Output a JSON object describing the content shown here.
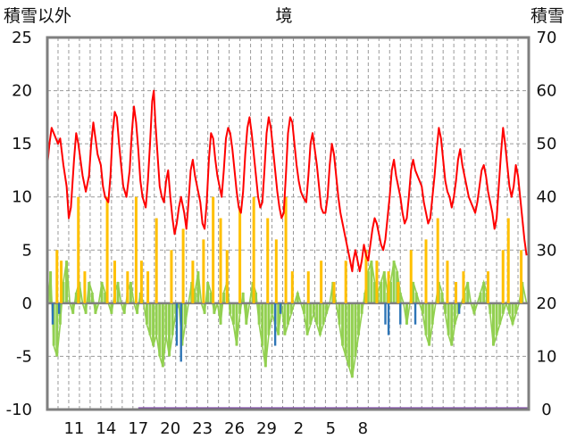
{
  "chart_data": {
    "type": "bar+line",
    "title": "境",
    "left_axis_label": "積雪以外",
    "right_axis_label": "積雪",
    "left_ylim": [
      -10,
      25
    ],
    "left_ticks": [
      "25",
      "20",
      "15",
      "10",
      "5",
      "0",
      "-5",
      "-10"
    ],
    "right_ylim": [
      0,
      70
    ],
    "right_ticks": [
      "70",
      "60",
      "50",
      "40",
      "30",
      "20",
      "10",
      "0"
    ],
    "x_range_days": 45,
    "x_ticks": [
      {
        "label": "11",
        "day": 2.5
      },
      {
        "label": "14",
        "day": 5.5
      },
      {
        "label": "17",
        "day": 8.5
      },
      {
        "label": "20",
        "day": 11.5
      },
      {
        "label": "23",
        "day": 14.5
      },
      {
        "label": "26",
        "day": 17.5
      },
      {
        "label": "29",
        "day": 20.5
      },
      {
        "label": "2",
        "day": 23.5
      },
      {
        "label": "5",
        "day": 26.5
      },
      {
        "label": "8",
        "day": 29.5
      }
    ],
    "grid": true,
    "snow_depth_right_axis": [
      [
        0.0,
        46
      ],
      [
        0.2,
        50
      ],
      [
        0.4,
        53
      ],
      [
        0.6,
        52
      ],
      [
        0.8,
        51
      ],
      [
        1.0,
        50
      ],
      [
        1.2,
        51
      ],
      [
        1.5,
        46
      ],
      [
        1.8,
        42
      ],
      [
        2.0,
        36
      ],
      [
        2.2,
        38
      ],
      [
        2.5,
        47
      ],
      [
        2.7,
        52
      ],
      [
        2.9,
        50
      ],
      [
        3.1,
        47
      ],
      [
        3.3,
        44
      ],
      [
        3.6,
        41
      ],
      [
        3.9,
        44
      ],
      [
        4.1,
        50
      ],
      [
        4.3,
        54
      ],
      [
        4.5,
        51
      ],
      [
        4.7,
        48
      ],
      [
        5.0,
        46
      ],
      [
        5.2,
        42
      ],
      [
        5.4,
        40
      ],
      [
        5.7,
        39
      ],
      [
        5.9,
        44
      ],
      [
        6.1,
        52
      ],
      [
        6.3,
        56
      ],
      [
        6.5,
        55
      ],
      [
        6.7,
        50
      ],
      [
        6.9,
        46
      ],
      [
        7.1,
        42
      ],
      [
        7.4,
        40
      ],
      [
        7.7,
        45
      ],
      [
        7.9,
        52
      ],
      [
        8.1,
        57
      ],
      [
        8.3,
        54
      ],
      [
        8.5,
        49
      ],
      [
        8.7,
        43
      ],
      [
        8.9,
        40
      ],
      [
        9.2,
        38
      ],
      [
        9.4,
        43
      ],
      [
        9.6,
        50
      ],
      [
        9.8,
        58
      ],
      [
        9.95,
        60
      ],
      [
        10.1,
        54
      ],
      [
        10.3,
        48
      ],
      [
        10.5,
        42
      ],
      [
        10.7,
        40
      ],
      [
        10.9,
        39
      ],
      [
        11.1,
        43
      ],
      [
        11.3,
        45
      ],
      [
        11.5,
        40
      ],
      [
        11.7,
        36
      ],
      [
        11.9,
        33
      ],
      [
        12.1,
        35
      ],
      [
        12.3,
        38
      ],
      [
        12.5,
        40
      ],
      [
        12.8,
        37
      ],
      [
        13.0,
        34
      ],
      [
        13.2,
        39
      ],
      [
        13.4,
        45
      ],
      [
        13.6,
        47
      ],
      [
        13.8,
        44
      ],
      [
        14.1,
        41
      ],
      [
        14.3,
        39
      ],
      [
        14.5,
        35
      ],
      [
        14.7,
        34
      ],
      [
        14.9,
        39
      ],
      [
        15.1,
        47
      ],
      [
        15.3,
        52
      ],
      [
        15.5,
        51
      ],
      [
        15.7,
        47
      ],
      [
        15.9,
        44
      ],
      [
        16.1,
        42
      ],
      [
        16.3,
        40
      ],
      [
        16.5,
        45
      ],
      [
        16.7,
        51
      ],
      [
        16.9,
        53
      ],
      [
        17.1,
        52
      ],
      [
        17.3,
        49
      ],
      [
        17.5,
        45
      ],
      [
        17.7,
        41
      ],
      [
        17.9,
        38
      ],
      [
        18.1,
        37
      ],
      [
        18.3,
        41
      ],
      [
        18.5,
        48
      ],
      [
        18.7,
        53
      ],
      [
        18.9,
        55
      ],
      [
        19.1,
        52
      ],
      [
        19.3,
        48
      ],
      [
        19.5,
        44
      ],
      [
        19.7,
        40
      ],
      [
        19.9,
        38
      ],
      [
        20.1,
        39
      ],
      [
        20.3,
        45
      ],
      [
        20.5,
        52
      ],
      [
        20.7,
        55
      ],
      [
        20.9,
        53
      ],
      [
        21.1,
        49
      ],
      [
        21.3,
        45
      ],
      [
        21.5,
        41
      ],
      [
        21.7,
        38
      ],
      [
        21.9,
        36
      ],
      [
        22.1,
        37
      ],
      [
        22.3,
        44
      ],
      [
        22.5,
        52
      ],
      [
        22.7,
        55
      ],
      [
        22.9,
        54
      ],
      [
        23.1,
        50
      ],
      [
        23.3,
        46
      ],
      [
        23.5,
        43
      ],
      [
        23.7,
        41
      ],
      [
        23.9,
        40
      ],
      [
        24.2,
        39
      ],
      [
        24.4,
        44
      ],
      [
        24.6,
        50
      ],
      [
        24.8,
        52
      ],
      [
        25.0,
        49
      ],
      [
        25.2,
        46
      ],
      [
        25.4,
        42
      ],
      [
        25.6,
        38
      ],
      [
        25.8,
        37
      ],
      [
        26.0,
        37
      ],
      [
        26.2,
        40
      ],
      [
        26.4,
        46
      ],
      [
        26.6,
        50
      ],
      [
        26.8,
        48
      ],
      [
        27.0,
        44
      ],
      [
        27.2,
        40
      ],
      [
        27.4,
        37
      ],
      [
        27.6,
        35
      ],
      [
        27.8,
        33
      ],
      [
        28.0,
        31
      ],
      [
        28.2,
        29
      ],
      [
        28.4,
        27
      ],
      [
        28.5,
        26
      ],
      [
        28.6,
        28
      ],
      [
        28.8,
        30
      ],
      [
        29.0,
        28
      ],
      [
        29.2,
        26
      ],
      [
        29.4,
        28
      ],
      [
        29.6,
        31
      ],
      [
        29.8,
        29
      ],
      [
        30.0,
        28
      ],
      [
        30.2,
        31
      ],
      [
        30.4,
        34
      ],
      [
        30.6,
        36
      ],
      [
        30.8,
        35
      ],
      [
        31.0,
        33
      ],
      [
        31.2,
        31
      ],
      [
        31.4,
        30
      ],
      [
        31.6,
        32
      ],
      [
        31.8,
        36
      ],
      [
        32.0,
        40
      ],
      [
        32.2,
        45
      ],
      [
        32.4,
        47
      ],
      [
        32.6,
        44
      ],
      [
        32.8,
        42
      ],
      [
        33.0,
        40
      ],
      [
        33.2,
        37
      ],
      [
        33.4,
        35
      ],
      [
        33.6,
        36
      ],
      [
        33.8,
        40
      ],
      [
        34.0,
        45
      ],
      [
        34.2,
        47
      ],
      [
        34.4,
        45
      ],
      [
        34.6,
        44
      ],
      [
        34.8,
        43
      ],
      [
        35.0,
        42
      ],
      [
        35.2,
        39
      ],
      [
        35.4,
        37
      ],
      [
        35.6,
        35
      ],
      [
        35.8,
        36
      ],
      [
        36.0,
        40
      ],
      [
        36.2,
        44
      ],
      [
        36.4,
        49
      ],
      [
        36.6,
        53
      ],
      [
        36.8,
        51
      ],
      [
        37.0,
        47
      ],
      [
        37.2,
        43
      ],
      [
        37.4,
        41
      ],
      [
        37.6,
        40
      ],
      [
        37.8,
        38
      ],
      [
        38.0,
        40
      ],
      [
        38.2,
        43
      ],
      [
        38.4,
        47
      ],
      [
        38.6,
        49
      ],
      [
        38.8,
        46
      ],
      [
        39.0,
        44
      ],
      [
        39.2,
        42
      ],
      [
        39.4,
        40
      ],
      [
        39.6,
        39
      ],
      [
        39.8,
        38
      ],
      [
        40.0,
        37
      ],
      [
        40.2,
        39
      ],
      [
        40.4,
        42
      ],
      [
        40.6,
        45
      ],
      [
        40.8,
        46
      ],
      [
        41.0,
        44
      ],
      [
        41.2,
        41
      ],
      [
        41.4,
        39
      ],
      [
        41.6,
        37
      ],
      [
        41.8,
        34
      ],
      [
        42.0,
        36
      ],
      [
        42.2,
        42
      ],
      [
        42.4,
        48
      ],
      [
        42.6,
        53
      ],
      [
        42.8,
        50
      ],
      [
        43.0,
        46
      ],
      [
        43.2,
        42
      ],
      [
        43.4,
        40
      ],
      [
        43.6,
        42
      ],
      [
        43.8,
        46
      ],
      [
        44.0,
        44
      ],
      [
        44.2,
        40
      ],
      [
        44.4,
        36
      ],
      [
        44.6,
        32
      ],
      [
        44.8,
        29
      ]
    ],
    "other_series_green_left_axis": [
      [
        0.0,
        -1
      ],
      [
        0.3,
        3
      ],
      [
        0.6,
        -4
      ],
      [
        0.9,
        -5
      ],
      [
        1.2,
        -2
      ],
      [
        1.5,
        2
      ],
      [
        1.8,
        4
      ],
      [
        2.1,
        0
      ],
      [
        2.4,
        -1
      ],
      [
        2.7,
        1
      ],
      [
        3.0,
        2
      ],
      [
        3.3,
        0
      ],
      [
        3.6,
        -1
      ],
      [
        3.9,
        2
      ],
      [
        4.2,
        1
      ],
      [
        4.5,
        -1
      ],
      [
        4.8,
        0
      ],
      [
        5.1,
        2
      ],
      [
        5.4,
        1
      ],
      [
        5.7,
        0
      ],
      [
        6.0,
        -1
      ],
      [
        6.3,
        1
      ],
      [
        6.6,
        2
      ],
      [
        6.9,
        0
      ],
      [
        7.2,
        -1
      ],
      [
        7.5,
        1
      ],
      [
        7.8,
        2
      ],
      [
        8.1,
        0
      ],
      [
        8.4,
        -1
      ],
      [
        8.7,
        1
      ],
      [
        9.0,
        0
      ],
      [
        9.3,
        -2
      ],
      [
        9.6,
        -3
      ],
      [
        9.9,
        -4
      ],
      [
        10.2,
        -3
      ],
      [
        10.5,
        -5
      ],
      [
        10.8,
        -6
      ],
      [
        11.1,
        -3
      ],
      [
        11.4,
        -5
      ],
      [
        11.7,
        -3
      ],
      [
        12.0,
        -1
      ],
      [
        12.3,
        0
      ],
      [
        12.6,
        -4
      ],
      [
        12.9,
        -2
      ],
      [
        13.2,
        0
      ],
      [
        13.5,
        2
      ],
      [
        13.8,
        1
      ],
      [
        14.1,
        3
      ],
      [
        14.4,
        0
      ],
      [
        14.7,
        -1
      ],
      [
        15.0,
        2
      ],
      [
        15.3,
        1
      ],
      [
        15.6,
        -1
      ],
      [
        15.9,
        0
      ],
      [
        16.2,
        -2
      ],
      [
        16.5,
        1
      ],
      [
        16.8,
        2
      ],
      [
        17.1,
        -1
      ],
      [
        17.4,
        -2
      ],
      [
        17.7,
        -4
      ],
      [
        18.0,
        -1
      ],
      [
        18.3,
        1
      ],
      [
        18.6,
        -2
      ],
      [
        18.9,
        0
      ],
      [
        19.2,
        2
      ],
      [
        19.5,
        1
      ],
      [
        19.8,
        -2
      ],
      [
        20.1,
        -4
      ],
      [
        20.4,
        -6
      ],
      [
        20.7,
        -3
      ],
      [
        21.0,
        -1
      ],
      [
        21.3,
        -2
      ],
      [
        21.6,
        -3
      ],
      [
        21.9,
        0
      ],
      [
        22.2,
        -3
      ],
      [
        22.5,
        -2
      ],
      [
        22.8,
        -1
      ],
      [
        23.1,
        0
      ],
      [
        23.4,
        1
      ],
      [
        23.7,
        0
      ],
      [
        24.0,
        -1
      ],
      [
        24.3,
        -3
      ],
      [
        24.6,
        -2
      ],
      [
        24.9,
        -1
      ],
      [
        25.2,
        -2
      ],
      [
        25.5,
        -3
      ],
      [
        25.8,
        -2
      ],
      [
        26.1,
        -1
      ],
      [
        26.4,
        0
      ],
      [
        26.7,
        2
      ],
      [
        27.0,
        0
      ],
      [
        27.3,
        -2
      ],
      [
        27.6,
        -4
      ],
      [
        27.9,
        -5
      ],
      [
        28.2,
        -6
      ],
      [
        28.5,
        -7
      ],
      [
        28.8,
        -5
      ],
      [
        29.1,
        -3
      ],
      [
        29.4,
        -1
      ],
      [
        29.7,
        1
      ],
      [
        30.0,
        3
      ],
      [
        30.3,
        4
      ],
      [
        30.6,
        2
      ],
      [
        30.9,
        1
      ],
      [
        31.2,
        2
      ],
      [
        31.5,
        3
      ],
      [
        31.8,
        1
      ],
      [
        32.1,
        2
      ],
      [
        32.4,
        4
      ],
      [
        32.7,
        3
      ],
      [
        33.0,
        1
      ],
      [
        33.3,
        0
      ],
      [
        33.6,
        -2
      ],
      [
        33.9,
        0
      ],
      [
        34.2,
        2
      ],
      [
        34.5,
        1
      ],
      [
        34.8,
        0
      ],
      [
        35.1,
        -1
      ],
      [
        35.4,
        -3
      ],
      [
        35.7,
        -4
      ],
      [
        36.0,
        -2
      ],
      [
        36.3,
        0
      ],
      [
        36.6,
        2
      ],
      [
        36.9,
        1
      ],
      [
        37.2,
        -1
      ],
      [
        37.5,
        -3
      ],
      [
        37.8,
        -4
      ],
      [
        38.1,
        -2
      ],
      [
        38.4,
        -1
      ],
      [
        38.7,
        0
      ],
      [
        39.0,
        1
      ],
      [
        39.3,
        2
      ],
      [
        39.6,
        0
      ],
      [
        39.9,
        -1
      ],
      [
        40.2,
        0
      ],
      [
        40.5,
        1
      ],
      [
        40.8,
        2
      ],
      [
        41.1,
        1
      ],
      [
        41.4,
        -1
      ],
      [
        41.7,
        -4
      ],
      [
        42.0,
        -3
      ],
      [
        42.3,
        -2
      ],
      [
        42.6,
        -1
      ],
      [
        42.9,
        0
      ],
      [
        43.2,
        -1
      ],
      [
        43.5,
        -2
      ],
      [
        43.8,
        -1
      ],
      [
        44.1,
        0
      ],
      [
        44.4,
        2
      ],
      [
        44.8,
        0
      ]
    ],
    "other_bars_orange_left_axis": [
      [
        0.9,
        5
      ],
      [
        1.3,
        4
      ],
      [
        2.9,
        10
      ],
      [
        3.5,
        3
      ],
      [
        5.6,
        10
      ],
      [
        6.3,
        4
      ],
      [
        7.5,
        3
      ],
      [
        8.3,
        10
      ],
      [
        8.8,
        4
      ],
      [
        9.4,
        3
      ],
      [
        10.2,
        8
      ],
      [
        11.6,
        5
      ],
      [
        12.7,
        7
      ],
      [
        13.6,
        4
      ],
      [
        14.6,
        6
      ],
      [
        15.5,
        10
      ],
      [
        16.2,
        8
      ],
      [
        16.8,
        5
      ],
      [
        18.0,
        9
      ],
      [
        19.3,
        10
      ],
      [
        20.6,
        8
      ],
      [
        21.4,
        6
      ],
      [
        22.3,
        10
      ],
      [
        22.9,
        3
      ],
      [
        24.4,
        3
      ],
      [
        25.6,
        4
      ],
      [
        26.8,
        2
      ],
      [
        27.9,
        4
      ],
      [
        29.8,
        5
      ],
      [
        30.8,
        4
      ],
      [
        31.9,
        3
      ],
      [
        32.8,
        2
      ],
      [
        34.0,
        5
      ],
      [
        35.4,
        6
      ],
      [
        36.5,
        8
      ],
      [
        37.4,
        4
      ],
      [
        38.2,
        2
      ],
      [
        38.9,
        3
      ],
      [
        41.2,
        3
      ],
      [
        42.6,
        5
      ],
      [
        43.1,
        8
      ],
      [
        44.3,
        5
      ]
    ],
    "other_bars_blue_left_axis": [
      [
        0.5,
        -2
      ],
      [
        1.1,
        -1
      ],
      [
        12.1,
        -4
      ],
      [
        12.5,
        -5.5
      ],
      [
        21.3,
        -4
      ],
      [
        21.8,
        -1
      ],
      [
        31.6,
        -2
      ],
      [
        31.9,
        -3
      ],
      [
        33.0,
        -2
      ],
      [
        34.4,
        -2
      ],
      [
        38.5,
        -1
      ]
    ]
  }
}
